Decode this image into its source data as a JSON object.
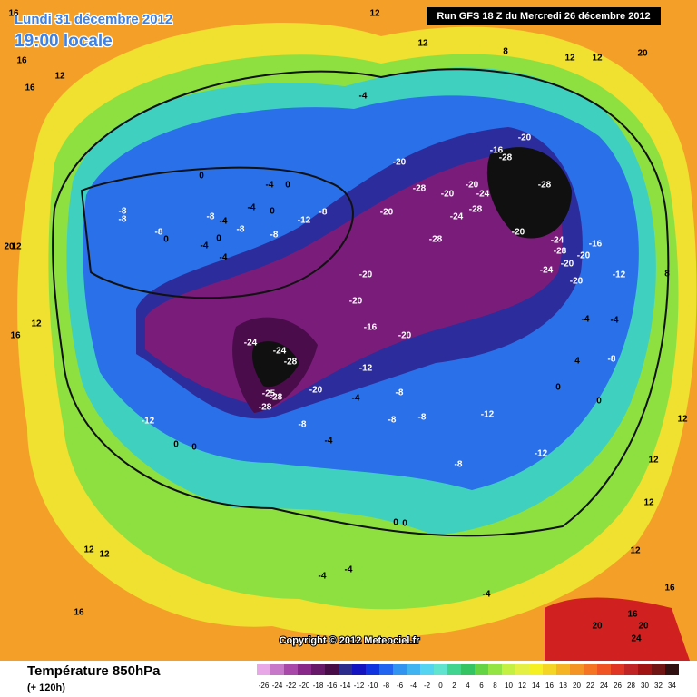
{
  "header": {
    "date": "Lundi 31 décembre 2012",
    "time": "19:00 locale",
    "run": "Run GFS 18 Z du Mercredi 26 décembre 2012"
  },
  "copyright": "Copyright © 2012 Meteociel.fr",
  "footer": {
    "title": "Température 850hPa",
    "lead": "(+ 120h)"
  },
  "colorbar": {
    "ticks": [
      -26,
      -24,
      -22,
      -20,
      -18,
      -16,
      -14,
      -12,
      -10,
      -8,
      -6,
      -4,
      -2,
      0,
      2,
      4,
      6,
      8,
      10,
      12,
      14,
      16,
      18,
      20,
      22,
      24,
      26,
      28,
      30,
      32,
      34
    ],
    "colors": [
      "#e8a8e8",
      "#c878c8",
      "#a848a8",
      "#882888",
      "#681868",
      "#480c48",
      "#2c2c8c",
      "#1414c0",
      "#1034e0",
      "#2064f0",
      "#3094f0",
      "#40b4f0",
      "#54d4f0",
      "#60e4d0",
      "#40d490",
      "#34c464",
      "#64d444",
      "#94e444",
      "#c4f044",
      "#e4f044",
      "#f4f024",
      "#f4d424",
      "#f4b424",
      "#f49424",
      "#f47424",
      "#f05424",
      "#e03424",
      "#c02424",
      "#a01414",
      "#701414",
      "#301010"
    ]
  },
  "map_labels": [
    16,
    12,
    20,
    16,
    12,
    16,
    12,
    12,
    12,
    8,
    -4,
    0,
    -20,
    -16,
    -20,
    -28,
    -28,
    -20,
    -20,
    -24,
    -28,
    -8,
    -8,
    -4,
    0,
    -12,
    -8,
    -4,
    0,
    -8,
    -4,
    -8,
    -8,
    0,
    -4,
    0,
    -4,
    -8,
    -20,
    -24,
    -28,
    -28,
    -20,
    -24,
    -28,
    -16,
    -20,
    -20,
    -24,
    -20,
    -12,
    -20,
    -20,
    -16,
    -20,
    -24,
    -24,
    -28,
    -12,
    -20,
    -25,
    -28,
    -28,
    -4,
    -8,
    -8,
    -4,
    -8,
    -8,
    -12,
    -12,
    -12,
    -8,
    0,
    0,
    0,
    0,
    -4,
    -4,
    -4,
    4,
    0,
    0,
    -4,
    -4,
    -8,
    12,
    12,
    16,
    12,
    16,
    20,
    20,
    16,
    24,
    12,
    20,
    16,
    12,
    8,
    12,
    12,
    12
  ]
}
